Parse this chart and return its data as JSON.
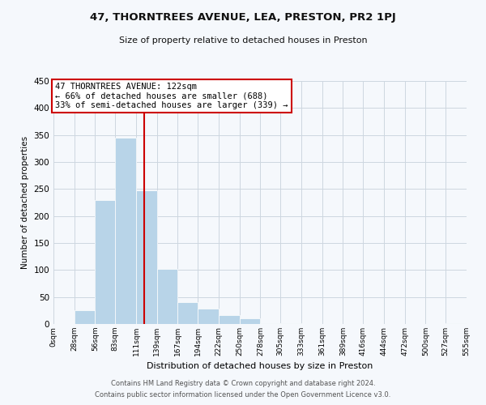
{
  "title": "47, THORNTREES AVENUE, LEA, PRESTON, PR2 1PJ",
  "subtitle": "Size of property relative to detached houses in Preston",
  "xlabel": "Distribution of detached houses by size in Preston",
  "ylabel": "Number of detached properties",
  "bar_color": "#b8d4e8",
  "vline_x": 122,
  "vline_color": "#cc0000",
  "annotation_title": "47 THORNTREES AVENUE: 122sqm",
  "annotation_line1": "← 66% of detached houses are smaller (688)",
  "annotation_line2": "33% of semi-detached houses are larger (339) →",
  "annotation_box_edge": "#cc0000",
  "bin_edges": [
    0,
    28,
    56,
    83,
    111,
    139,
    167,
    194,
    222,
    250,
    278,
    305,
    333,
    361,
    389,
    416,
    444,
    472,
    500,
    527,
    555
  ],
  "bar_heights": [
    0,
    25,
    230,
    345,
    248,
    102,
    40,
    28,
    16,
    10,
    2,
    1,
    0,
    0,
    0,
    0,
    0,
    0,
    0,
    1
  ],
  "ylim": [
    0,
    450
  ],
  "yticks": [
    0,
    50,
    100,
    150,
    200,
    250,
    300,
    350,
    400,
    450
  ],
  "background_color": "#f5f8fc",
  "grid_color": "#cdd6e0",
  "footer_line1": "Contains HM Land Registry data © Crown copyright and database right 2024.",
  "footer_line2": "Contains public sector information licensed under the Open Government Licence v3.0."
}
